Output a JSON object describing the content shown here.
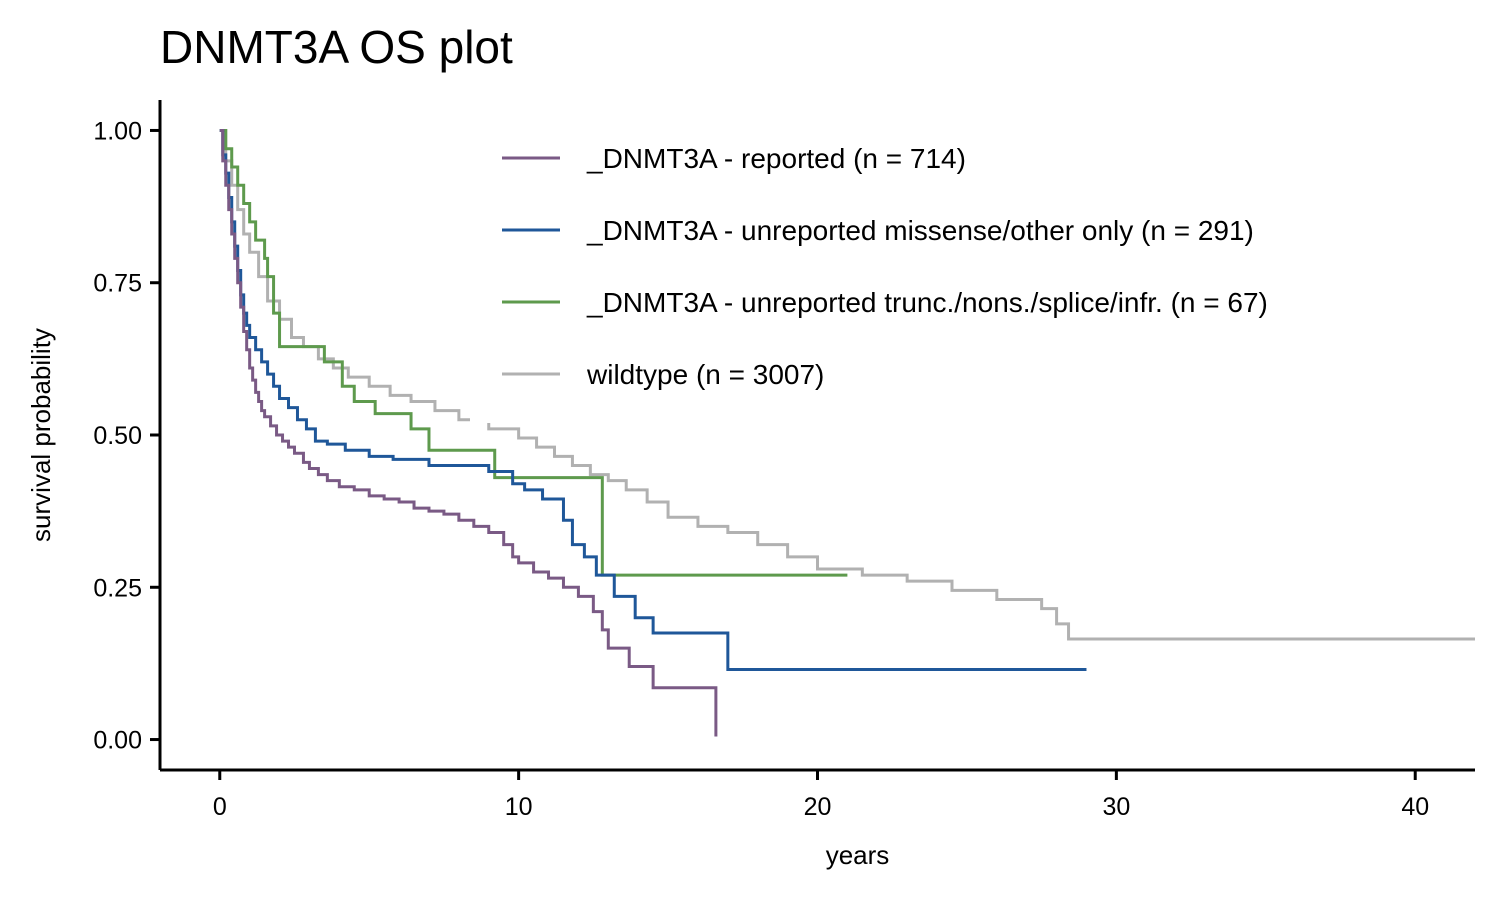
{
  "chart_data": {
    "type": "line",
    "title": "DNMT3A OS plot",
    "xlabel": "years",
    "ylabel": "survival probability",
    "xlim": [
      -2,
      42
    ],
    "ylim": [
      -0.05,
      1.05
    ],
    "xticks": [
      0,
      10,
      20,
      30,
      40
    ],
    "yticks": [
      0,
      0.25,
      0.5,
      0.75,
      1
    ],
    "ytick_labels": [
      "0.00",
      "0.25",
      "0.50",
      "0.75",
      "1.00"
    ],
    "grid": false,
    "legend_position": "top-right",
    "step": true,
    "series": [
      {
        "name": "_DNMT3A - reported (n = 714)",
        "color": "#7A5A85",
        "x": [
          0,
          0.1,
          0.2,
          0.3,
          0.4,
          0.5,
          0.6,
          0.7,
          0.8,
          0.9,
          1.0,
          1.1,
          1.2,
          1.3,
          1.4,
          1.5,
          1.7,
          1.9,
          2.1,
          2.3,
          2.5,
          2.8,
          3.0,
          3.3,
          3.6,
          4.0,
          4.5,
          5.0,
          5.5,
          6.0,
          6.5,
          7.0,
          7.5,
          8.0,
          8.5,
          9.0,
          9.5,
          9.8,
          10.0,
          10.5,
          11.0,
          11.5,
          12.0,
          12.5,
          12.8,
          13.0,
          13.7,
          14.5,
          15.5,
          16.6
        ],
        "y": [
          1.0,
          0.95,
          0.91,
          0.87,
          0.83,
          0.79,
          0.75,
          0.71,
          0.67,
          0.64,
          0.61,
          0.59,
          0.57,
          0.555,
          0.54,
          0.53,
          0.515,
          0.5,
          0.49,
          0.48,
          0.47,
          0.455,
          0.445,
          0.435,
          0.425,
          0.415,
          0.41,
          0.4,
          0.395,
          0.39,
          0.38,
          0.375,
          0.37,
          0.36,
          0.35,
          0.34,
          0.32,
          0.3,
          0.29,
          0.275,
          0.265,
          0.25,
          0.235,
          0.21,
          0.18,
          0.15,
          0.12,
          0.085,
          0.085,
          0.005
        ]
      },
      {
        "name": "_DNMT3A - unreported missense/other only (n = 291)",
        "color": "#1F5799",
        "x": [
          0,
          0.1,
          0.2,
          0.3,
          0.4,
          0.5,
          0.6,
          0.7,
          0.8,
          0.9,
          1.0,
          1.2,
          1.4,
          1.6,
          1.8,
          2.0,
          2.3,
          2.6,
          2.9,
          3.2,
          3.6,
          4.2,
          5.0,
          5.8,
          7.0,
          9.0,
          9.8,
          10.2,
          10.8,
          11.5,
          11.8,
          12.2,
          12.6,
          13.2,
          13.9,
          14.5,
          17.0,
          29.0
        ],
        "y": [
          1.0,
          0.96,
          0.93,
          0.89,
          0.85,
          0.81,
          0.77,
          0.73,
          0.7,
          0.68,
          0.66,
          0.64,
          0.62,
          0.6,
          0.58,
          0.56,
          0.545,
          0.525,
          0.51,
          0.49,
          0.485,
          0.475,
          0.465,
          0.46,
          0.45,
          0.44,
          0.42,
          0.41,
          0.395,
          0.36,
          0.32,
          0.3,
          0.27,
          0.235,
          0.2,
          0.175,
          0.115,
          0.115
        ]
      },
      {
        "name": "_DNMT3A - unreported trunc./nons./splice/infr. (n = 67)",
        "color": "#5E9A4D",
        "x": [
          0,
          0.2,
          0.4,
          0.6,
          0.8,
          1.0,
          1.2,
          1.5,
          1.6,
          1.8,
          2.0,
          2.6,
          3.5,
          4.1,
          4.5,
          5.2,
          6.4,
          7.0,
          9.2,
          12.8,
          21.0
        ],
        "y": [
          1.0,
          0.97,
          0.94,
          0.91,
          0.88,
          0.85,
          0.82,
          0.79,
          0.76,
          0.7,
          0.645,
          0.645,
          0.62,
          0.58,
          0.555,
          0.535,
          0.51,
          0.475,
          0.43,
          0.27,
          0.27
        ]
      },
      {
        "name": "wildtype (n = 3007)",
        "color": "#B1B1B1",
        "x": [
          0,
          0.2,
          0.4,
          0.6,
          0.8,
          1.0,
          1.3,
          1.6,
          2.0,
          2.4,
          2.8,
          3.3,
          3.8,
          4.3,
          5.0,
          5.7,
          6.4,
          7.2,
          8.0,
          9.0,
          10.0,
          10.6,
          11.2,
          11.8,
          12.4,
          13.0,
          13.6,
          14.3,
          15.0,
          16.0,
          17.0,
          18.0,
          19.0,
          20.0,
          21.5,
          23.0,
          24.5,
          26.0,
          27.5,
          28.0,
          28.4,
          42.0
        ],
        "y": [
          1.0,
          0.95,
          0.91,
          0.87,
          0.83,
          0.8,
          0.76,
          0.72,
          0.69,
          0.66,
          0.645,
          0.625,
          0.61,
          0.595,
          0.58,
          0.565,
          0.555,
          0.54,
          0.525,
          0.51,
          0.495,
          0.48,
          0.465,
          0.45,
          0.435,
          0.425,
          0.41,
          0.39,
          0.365,
          0.35,
          0.34,
          0.32,
          0.3,
          0.28,
          0.27,
          0.26,
          0.245,
          0.23,
          0.215,
          0.19,
          0.165,
          0.165
        ]
      }
    ]
  }
}
